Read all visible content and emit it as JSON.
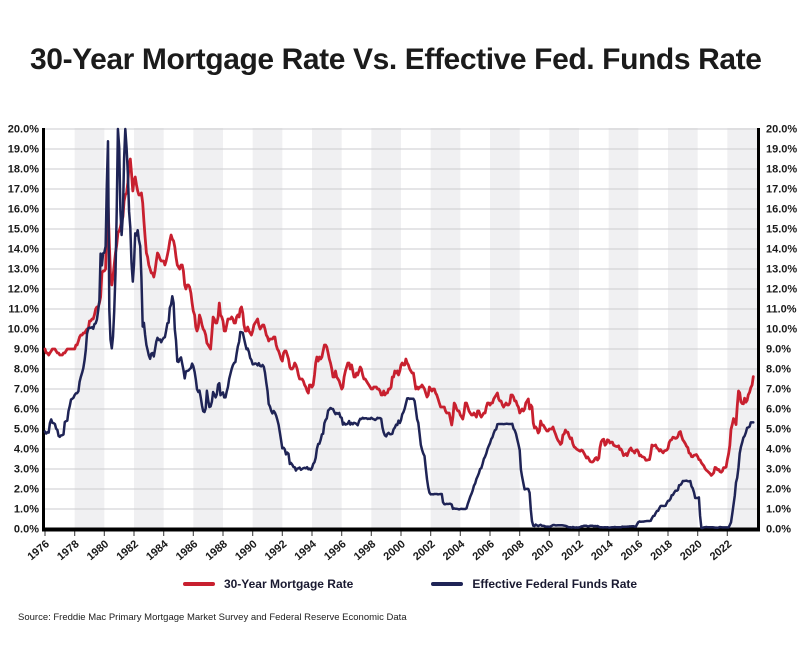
{
  "title": "30-Year Mortgage Rate Vs. Effective Fed. Funds Rate",
  "source_note": "Source: Freddie Mac Primary Mortgage Market Survey and Federal Reserve Economic Data",
  "legend": {
    "mortgage_label": "30-Year Mortgage Rate",
    "fedfunds_label": "Effective Federal Funds Rate"
  },
  "colors": {
    "mortgage": "#C8202F",
    "fedfunds": "#1F2456",
    "band": "#F0F0F2",
    "grid": "#CBCBCF",
    "axis": "#000000",
    "tick_text": "#1a1a1a"
  },
  "chart_data": {
    "type": "line",
    "title": "30-Year Mortgage Rate Vs. Effective Fed. Funds Rate",
    "xlabel": "",
    "ylabel": "",
    "ylim": [
      0,
      20
    ],
    "y_tick_step": 1,
    "y_tick_labels": [
      "0.0%",
      "1.0%",
      "2.0%",
      "3.0%",
      "4.0%",
      "5.0%",
      "6.0%",
      "7.0%",
      "8.0%",
      "9.0%",
      "10.0%",
      "11.0%",
      "12.0%",
      "13.0%",
      "14.0%",
      "15.0%",
      "16.0%",
      "17.0%",
      "18.0%",
      "19.0%",
      "20.0%"
    ],
    "x_start_year": 1976,
    "x_end_year": 2024,
    "points_per_year": 12,
    "x_ticks": [
      1976,
      1978,
      1980,
      1982,
      1984,
      1986,
      1988,
      1990,
      1992,
      1994,
      1996,
      1998,
      2000,
      2002,
      2004,
      2006,
      2008,
      2010,
      2012,
      2014,
      2016,
      2018,
      2020,
      2022
    ],
    "bands": {
      "start": 1978,
      "period": 4,
      "width": 2
    },
    "legend_position": "bottom",
    "grid": "horizontal",
    "series": [
      {
        "name": "30-Year Mortgage Rate",
        "color": "#C8202F",
        "values": [
          9.0,
          8.8,
          8.8,
          8.7,
          8.8,
          8.9,
          9.0,
          9.0,
          9.0,
          8.9,
          8.8,
          8.8,
          8.7,
          8.7,
          8.7,
          8.8,
          8.8,
          8.9,
          9.0,
          9.0,
          9.0,
          9.0,
          9.0,
          9.0,
          9.0,
          9.2,
          9.2,
          9.4,
          9.6,
          9.7,
          9.7,
          9.8,
          9.8,
          9.9,
          10.0,
          10.0,
          10.4,
          10.4,
          10.5,
          10.5,
          10.7,
          11.0,
          11.1,
          11.1,
          11.3,
          11.6,
          12.8,
          12.9,
          12.9,
          13.0,
          15.3,
          16.3,
          14.3,
          12.7,
          12.2,
          12.6,
          13.2,
          13.8,
          14.2,
          14.8,
          14.9,
          15.1,
          15.4,
          15.6,
          16.4,
          16.7,
          16.8,
          17.3,
          18.2,
          18.5,
          17.8,
          16.9,
          17.4,
          17.6,
          17.2,
          16.9,
          16.7,
          16.7,
          16.8,
          16.3,
          15.4,
          14.6,
          13.8,
          13.6,
          13.2,
          13.0,
          12.8,
          12.8,
          12.6,
          12.9,
          13.4,
          13.8,
          13.7,
          13.5,
          13.4,
          13.4,
          13.4,
          13.2,
          13.4,
          13.7,
          14.0,
          14.4,
          14.7,
          14.5,
          14.4,
          14.1,
          13.6,
          13.2,
          13.1,
          13.0,
          13.2,
          13.2,
          12.9,
          12.2,
          12.0,
          12.2,
          12.2,
          12.1,
          11.8,
          11.3,
          10.9,
          10.7,
          10.1,
          9.9,
          10.1,
          10.7,
          10.5,
          10.2,
          10.0,
          9.9,
          9.7,
          9.3,
          9.2,
          9.1,
          9.0,
          9.8,
          10.6,
          10.5,
          10.3,
          10.3,
          10.6,
          11.3,
          10.7,
          10.6,
          10.4,
          9.9,
          9.9,
          10.2,
          10.5,
          10.5,
          10.5,
          10.6,
          10.5,
          10.3,
          10.3,
          10.6,
          10.7,
          10.6,
          11.0,
          11.1,
          10.8,
          10.2,
          9.9,
          9.9,
          10.1,
          9.9,
          9.8,
          9.7,
          9.9,
          10.2,
          10.3,
          10.4,
          10.5,
          10.2,
          10.0,
          10.1,
          10.2,
          10.2,
          10.0,
          9.7,
          9.6,
          9.4,
          9.5,
          9.5,
          9.5,
          9.6,
          9.6,
          9.2,
          9.0,
          8.9,
          8.7,
          8.5,
          8.4,
          8.8,
          8.9,
          8.9,
          8.7,
          8.5,
          8.1,
          8.0,
          8.0,
          8.1,
          8.3,
          8.2,
          8.0,
          7.7,
          7.5,
          7.5,
          7.5,
          7.4,
          7.2,
          7.1,
          6.9,
          6.8,
          7.2,
          7.2,
          7.1,
          7.2,
          7.7,
          8.3,
          8.6,
          8.4,
          8.6,
          8.5,
          8.6,
          8.9,
          9.2,
          9.2,
          9.1,
          8.8,
          8.5,
          8.3,
          8.0,
          7.6,
          7.6,
          7.9,
          7.6,
          7.5,
          7.4,
          7.2,
          7.0,
          7.1,
          7.6,
          7.9,
          8.1,
          8.3,
          8.3,
          8.0,
          8.2,
          7.9,
          7.6,
          7.6,
          7.8,
          7.7,
          7.9,
          8.1,
          8.0,
          7.7,
          7.5,
          7.5,
          7.4,
          7.3,
          7.2,
          7.1,
          7.0,
          7.0,
          7.1,
          7.1,
          7.1,
          7.0,
          7.0,
          6.9,
          6.7,
          6.7,
          6.9,
          6.7,
          6.8,
          6.8,
          7.0,
          7.0,
          7.1,
          7.6,
          7.6,
          7.9,
          7.8,
          7.9,
          7.7,
          7.9,
          8.2,
          8.3,
          8.2,
          8.2,
          8.5,
          8.3,
          8.2,
          8.0,
          7.9,
          7.8,
          7.8,
          7.4,
          7.0,
          7.1,
          7.0,
          7.1,
          7.1,
          7.2,
          7.1,
          7.0,
          6.8,
          6.6,
          6.7,
          7.1,
          7.0,
          6.9,
          7.0,
          7.0,
          6.8,
          6.7,
          6.5,
          6.3,
          6.1,
          6.1,
          6.1,
          6.1,
          5.9,
          5.8,
          5.8,
          5.8,
          5.5,
          5.2,
          5.6,
          6.3,
          6.2,
          6.0,
          5.9,
          5.9,
          5.7,
          5.6,
          5.5,
          5.8,
          6.3,
          6.3,
          6.1,
          5.9,
          5.8,
          5.7,
          5.7,
          5.8,
          5.7,
          5.6,
          5.9,
          5.9,
          5.7,
          5.6,
          5.7,
          5.8,
          5.8,
          6.1,
          6.3,
          6.3,
          6.2,
          6.3,
          6.3,
          6.5,
          6.6,
          6.7,
          6.8,
          6.5,
          6.4,
          6.4,
          6.2,
          6.1,
          6.2,
          6.3,
          6.2,
          6.2,
          6.3,
          6.7,
          6.7,
          6.6,
          6.4,
          6.4,
          6.2,
          6.1,
          5.8,
          5.9,
          6.0,
          5.9,
          6.0,
          6.3,
          6.4,
          6.5,
          6.0,
          6.2,
          6.1,
          5.3,
          5.05,
          5.1,
          5.0,
          4.8,
          4.9,
          5.4,
          5.2,
          5.2,
          5.1,
          5.0,
          4.9,
          4.9,
          5.0,
          5.0,
          5.0,
          5.1,
          4.9,
          4.75,
          4.56,
          4.43,
          4.35,
          4.23,
          4.3,
          4.7,
          4.76,
          4.95,
          4.84,
          4.84,
          4.64,
          4.51,
          4.55,
          4.27,
          4.11,
          4.07,
          4.0,
          3.96,
          3.92,
          3.89,
          3.95,
          3.91,
          3.8,
          3.68,
          3.55,
          3.6,
          3.5,
          3.38,
          3.35,
          3.35,
          3.41,
          3.53,
          3.57,
          3.45,
          3.54,
          4.07,
          4.37,
          4.46,
          4.49,
          4.19,
          4.26,
          4.46,
          4.43,
          4.3,
          4.34,
          4.34,
          4.19,
          4.16,
          4.13,
          4.12,
          4.16,
          3.98,
          4.0,
          3.86,
          3.67,
          3.71,
          3.77,
          3.67,
          3.84,
          3.98,
          4.05,
          3.91,
          3.89,
          3.8,
          3.94,
          3.96,
          3.87,
          3.66,
          3.69,
          3.61,
          3.6,
          3.57,
          3.44,
          3.44,
          3.46,
          3.47,
          3.77,
          4.2,
          4.15,
          4.17,
          4.2,
          4.05,
          4.01,
          3.9,
          3.97,
          3.88,
          3.81,
          3.9,
          3.92,
          3.95,
          4.03,
          4.33,
          4.44,
          4.47,
          4.59,
          4.57,
          4.53,
          4.55,
          4.63,
          4.83,
          4.87,
          4.64,
          4.46,
          4.37,
          4.27,
          4.14,
          4.07,
          3.8,
          3.77,
          3.62,
          3.61,
          3.69,
          3.7,
          3.72,
          3.62,
          3.47,
          3.45,
          3.31,
          3.23,
          3.16,
          3.02,
          2.94,
          2.89,
          2.83,
          2.77,
          2.68,
          2.74,
          2.81,
          3.08,
          3.06,
          2.96,
          2.98,
          2.87,
          2.84,
          2.9,
          3.07,
          3.07,
          3.1,
          3.45,
          3.76,
          4.17,
          4.98,
          5.23,
          5.52,
          5.41,
          5.22,
          6.11,
          6.9,
          6.81,
          6.36,
          6.27,
          6.26,
          6.54,
          6.34,
          6.43,
          6.71,
          6.84,
          7.07,
          7.2,
          7.62
        ]
      },
      {
        "name": "Effective Federal Funds Rate",
        "color": "#1F2456",
        "values": [
          4.87,
          4.77,
          4.84,
          4.82,
          5.29,
          5.48,
          5.31,
          5.29,
          5.25,
          5.02,
          4.95,
          4.65,
          4.61,
          4.68,
          4.69,
          4.73,
          5.35,
          5.39,
          5.42,
          5.9,
          6.14,
          6.47,
          6.51,
          6.56,
          6.7,
          6.78,
          6.79,
          6.89,
          7.36,
          7.6,
          7.81,
          8.04,
          8.45,
          8.96,
          9.76,
          10.03,
          10.07,
          10.06,
          10.09,
          10.01,
          10.24,
          10.29,
          10.47,
          10.94,
          11.43,
          13.77,
          13.18,
          13.78,
          13.82,
          14.13,
          17.19,
          19.39,
          10.98,
          9.47,
          9.03,
          9.61,
          10.87,
          12.81,
          15.85,
          20.0,
          19.08,
          15.93,
          14.7,
          15.72,
          18.52,
          20.0,
          19.04,
          17.82,
          15.87,
          15.08,
          13.31,
          12.37,
          13.22,
          14.78,
          14.68,
          14.94,
          14.45,
          14.15,
          12.59,
          10.12,
          10.31,
          9.71,
          9.2,
          8.95,
          8.68,
          8.51,
          8.77,
          8.8,
          8.63,
          8.98,
          9.37,
          9.56,
          9.45,
          9.48,
          9.34,
          9.47,
          9.56,
          9.59,
          9.91,
          10.29,
          10.32,
          11.06,
          11.23,
          11.64,
          11.3,
          9.99,
          9.43,
          8.38,
          8.35,
          8.5,
          8.58,
          8.27,
          7.97,
          7.53,
          7.88,
          7.9,
          7.92,
          7.99,
          8.05,
          8.27,
          8.14,
          7.86,
          7.48,
          6.99,
          6.85,
          6.92,
          6.56,
          6.17,
          5.89,
          5.85,
          6.04,
          6.91,
          6.43,
          6.1,
          6.13,
          6.37,
          6.85,
          6.73,
          6.58,
          6.73,
          7.22,
          7.29,
          6.69,
          6.77,
          6.83,
          6.58,
          6.58,
          6.87,
          7.09,
          7.51,
          7.75,
          8.01,
          8.19,
          8.3,
          8.35,
          8.76,
          9.12,
          9.36,
          9.85,
          9.84,
          9.81,
          9.53,
          9.24,
          8.99,
          9.02,
          8.84,
          8.55,
          8.45,
          8.23,
          8.24,
          8.28,
          8.26,
          8.18,
          8.29,
          8.15,
          8.13,
          8.2,
          8.11,
          7.81,
          7.31,
          6.91,
          6.25,
          6.12,
          5.91,
          5.78,
          5.9,
          5.82,
          5.66,
          5.45,
          5.21,
          4.81,
          4.43,
          4.03,
          4.06,
          3.98,
          3.73,
          3.82,
          3.76,
          3.25,
          3.3,
          3.22,
          3.1,
          3.09,
          2.92,
          3.02,
          3.03,
          3.07,
          2.96,
          3.0,
          3.04,
          3.06,
          3.03,
          3.09,
          2.99,
          3.02,
          2.96,
          3.05,
          3.25,
          3.34,
          3.56,
          4.01,
          4.25,
          4.26,
          4.47,
          4.73,
          4.76,
          5.29,
          5.45,
          5.53,
          5.92,
          5.98,
          6.05,
          6.01,
          6.0,
          5.85,
          5.74,
          5.8,
          5.76,
          5.8,
          5.6,
          5.56,
          5.22,
          5.31,
          5.22,
          5.24,
          5.27,
          5.4,
          5.22,
          5.3,
          5.24,
          5.31,
          5.29,
          5.25,
          5.19,
          5.39,
          5.51,
          5.5,
          5.56,
          5.52,
          5.54,
          5.54,
          5.5,
          5.52,
          5.5,
          5.56,
          5.51,
          5.49,
          5.45,
          5.49,
          5.56,
          5.54,
          5.55,
          5.51,
          5.07,
          4.83,
          4.68,
          4.63,
          4.76,
          4.81,
          4.74,
          4.74,
          4.76,
          4.99,
          5.07,
          5.22,
          5.2,
          5.42,
          5.3,
          5.45,
          5.73,
          5.85,
          6.02,
          6.27,
          6.53,
          6.54,
          6.5,
          6.52,
          6.51,
          6.51,
          6.4,
          5.98,
          5.49,
          5.31,
          4.8,
          4.21,
          3.97,
          3.77,
          3.65,
          3.07,
          2.49,
          2.09,
          1.82,
          1.73,
          1.74,
          1.73,
          1.75,
          1.75,
          1.75,
          1.73,
          1.74,
          1.75,
          1.75,
          1.34,
          1.24,
          1.24,
          1.26,
          1.25,
          1.26,
          1.26,
          1.22,
          1.01,
          1.03,
          1.01,
          1.01,
          1.0,
          0.98,
          1.0,
          1.01,
          1.0,
          1.0,
          1.0,
          1.03,
          1.26,
          1.43,
          1.61,
          1.76,
          1.93,
          2.16,
          2.28,
          2.5,
          2.63,
          2.79,
          3.0,
          3.04,
          3.26,
          3.5,
          3.62,
          3.78,
          4.0,
          4.16,
          4.29,
          4.49,
          4.59,
          4.79,
          4.94,
          4.99,
          5.24,
          5.25,
          5.25,
          5.25,
          5.25,
          5.24,
          5.25,
          5.26,
          5.26,
          5.25,
          5.25,
          5.25,
          5.26,
          5.02,
          4.94,
          4.76,
          4.49,
          4.24,
          3.94,
          2.98,
          2.61,
          2.28,
          1.98,
          2.0,
          2.01,
          2.0,
          1.81,
          0.97,
          0.39,
          0.16,
          0.15,
          0.22,
          0.18,
          0.15,
          0.18,
          0.21,
          0.16,
          0.16,
          0.15,
          0.12,
          0.12,
          0.12,
          0.11,
          0.13,
          0.16,
          0.2,
          0.2,
          0.18,
          0.18,
          0.19,
          0.19,
          0.19,
          0.19,
          0.18,
          0.17,
          0.16,
          0.14,
          0.1,
          0.09,
          0.09,
          0.07,
          0.1,
          0.08,
          0.07,
          0.08,
          0.07,
          0.08,
          0.1,
          0.13,
          0.14,
          0.16,
          0.16,
          0.16,
          0.13,
          0.14,
          0.16,
          0.16,
          0.16,
          0.14,
          0.15,
          0.14,
          0.15,
          0.11,
          0.09,
          0.09,
          0.08,
          0.08,
          0.09,
          0.08,
          0.09,
          0.07,
          0.07,
          0.08,
          0.09,
          0.09,
          0.1,
          0.09,
          0.09,
          0.09,
          0.09,
          0.09,
          0.12,
          0.11,
          0.11,
          0.11,
          0.12,
          0.12,
          0.13,
          0.13,
          0.14,
          0.14,
          0.12,
          0.12,
          0.24,
          0.34,
          0.38,
          0.36,
          0.37,
          0.37,
          0.38,
          0.39,
          0.4,
          0.4,
          0.4,
          0.41,
          0.54,
          0.65,
          0.66,
          0.79,
          0.9,
          0.91,
          1.04,
          1.15,
          1.16,
          1.15,
          1.15,
          1.16,
          1.3,
          1.41,
          1.42,
          1.51,
          1.69,
          1.7,
          1.82,
          1.91,
          1.91,
          1.95,
          2.19,
          2.2,
          2.27,
          2.4,
          2.4,
          2.41,
          2.42,
          2.39,
          2.38,
          2.4,
          2.13,
          2.04,
          1.83,
          1.55,
          1.55,
          1.55,
          1.58,
          0.65,
          0.05,
          0.05,
          0.08,
          0.09,
          0.1,
          0.09,
          0.09,
          0.09,
          0.09,
          0.09,
          0.08,
          0.07,
          0.07,
          0.06,
          0.08,
          0.1,
          0.09,
          0.08,
          0.08,
          0.08,
          0.08,
          0.08,
          0.08,
          0.2,
          0.33,
          0.77,
          1.21,
          1.68,
          2.33,
          2.56,
          3.08,
          3.78,
          4.1,
          4.33,
          4.57,
          4.65,
          4.83,
          5.06,
          5.08,
          5.12,
          5.33,
          5.33,
          5.33
        ]
      }
    ]
  }
}
